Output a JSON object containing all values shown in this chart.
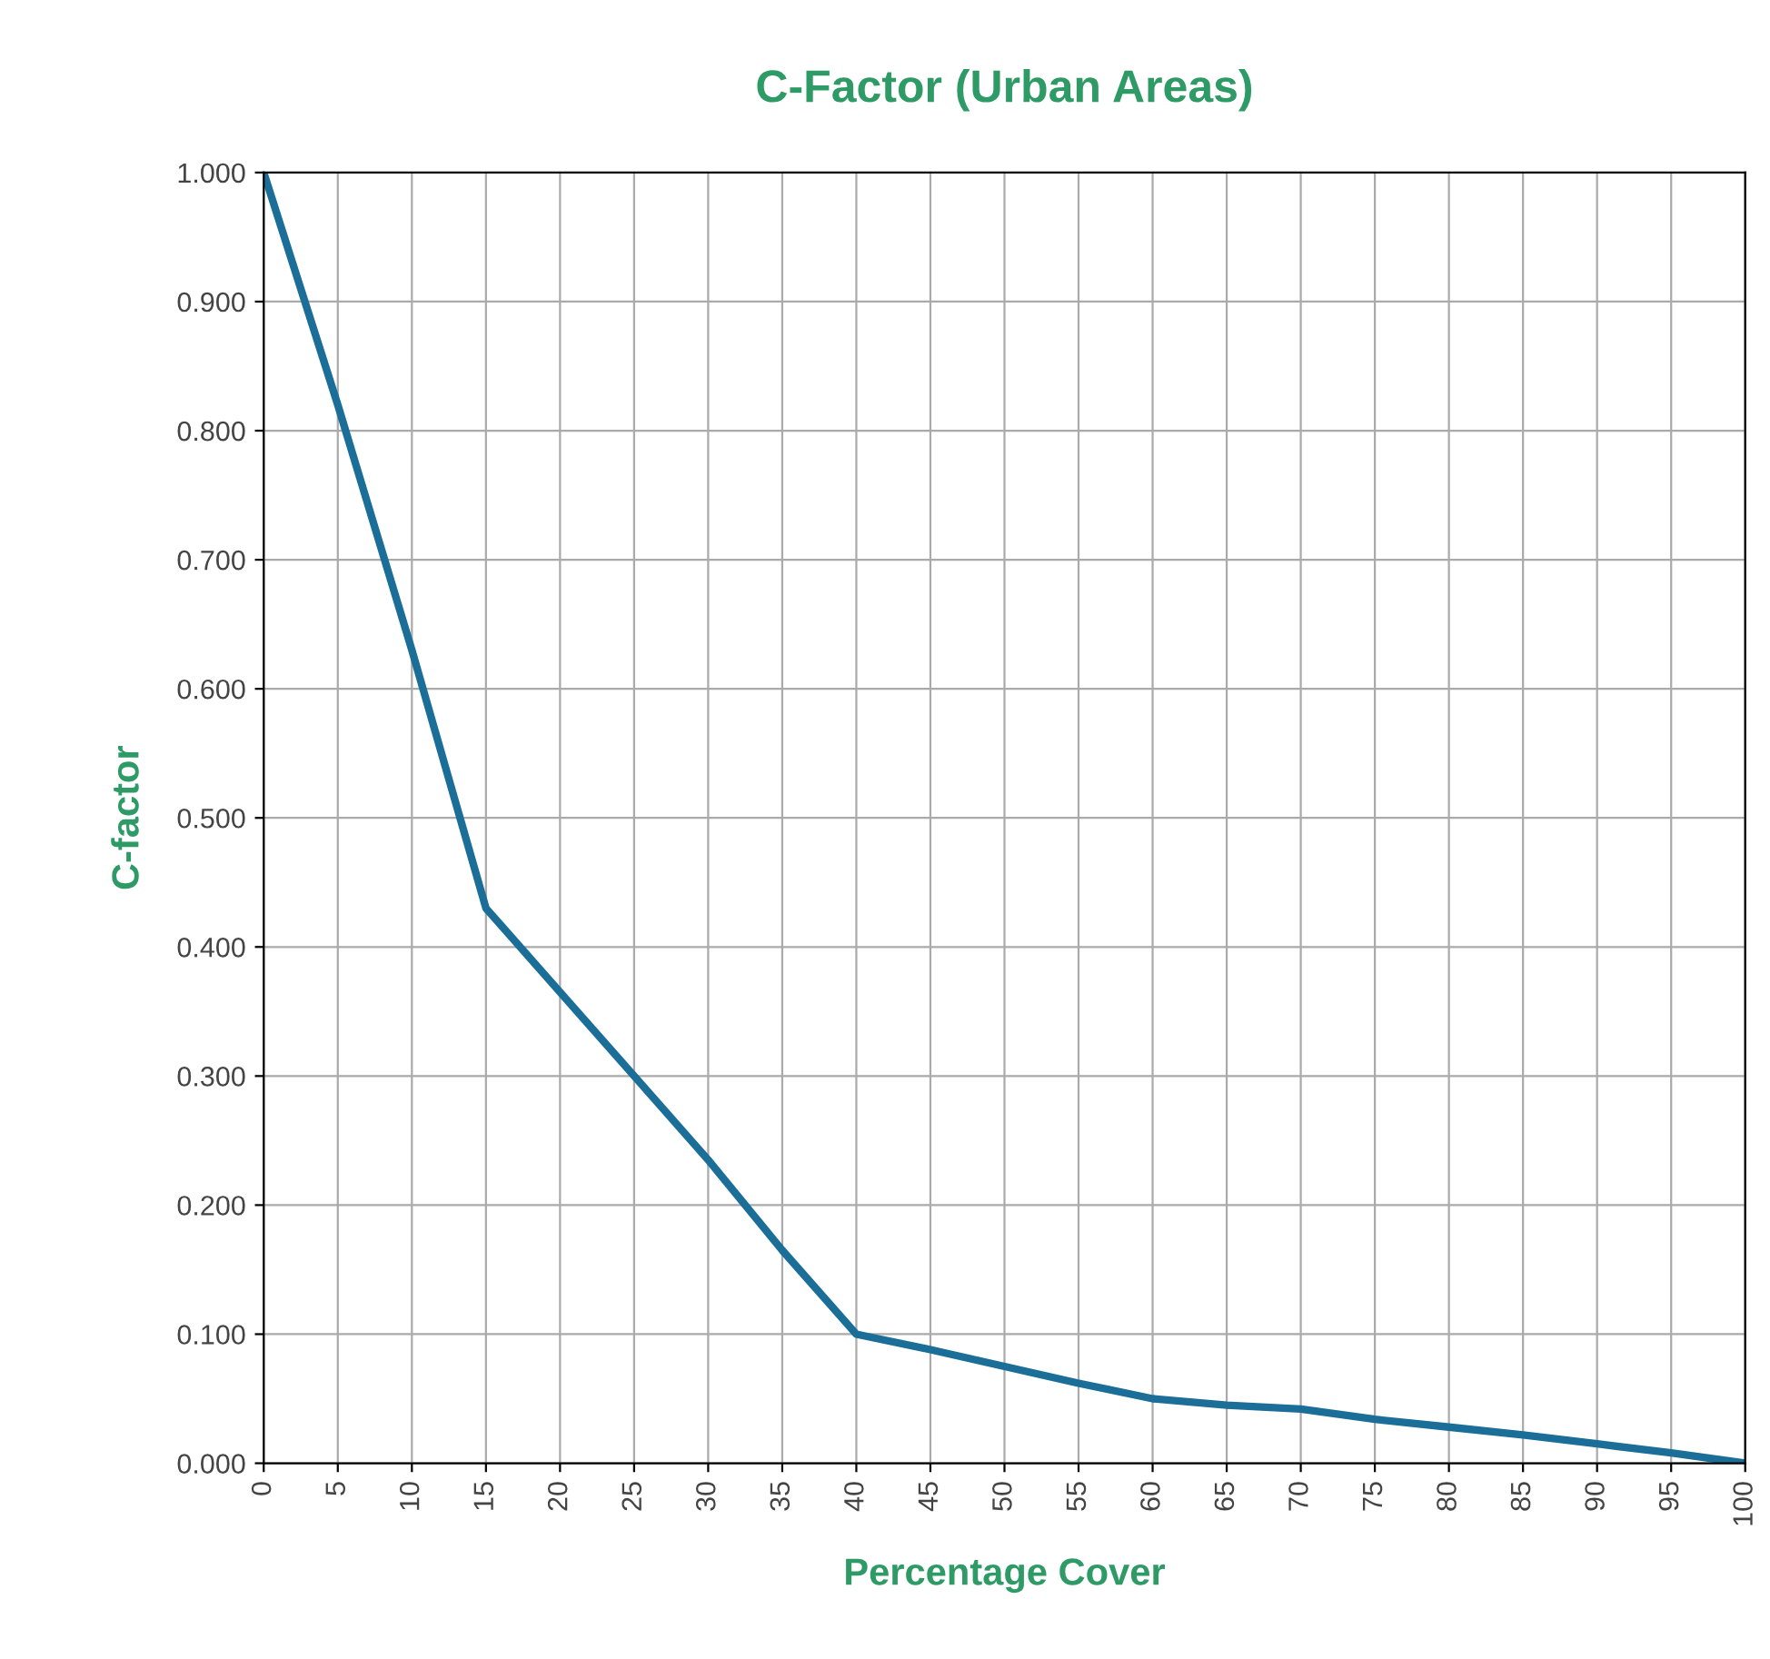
{
  "chart_data": {
    "type": "line",
    "title": "C-Factor (Urban Areas)",
    "xlabel": "Percentage Cover",
    "ylabel": "C-factor",
    "x": [
      0,
      5,
      10,
      12.5,
      15,
      20,
      25,
      30,
      35,
      40,
      45,
      50,
      55,
      60,
      65,
      70,
      75,
      80,
      85,
      90,
      95,
      100
    ],
    "series": [
      {
        "color": "#1a6e97",
        "values": [
          1.0,
          0.82,
          0.63,
          0.53,
          0.43,
          0.365,
          0.3,
          0.235,
          0.165,
          0.1,
          0.088,
          0.075,
          0.062,
          0.05,
          0.045,
          0.042,
          0.034,
          0.028,
          0.022,
          0.015,
          0.008,
          0.0
        ]
      }
    ],
    "xlim": [
      0,
      100
    ],
    "ylim": [
      0,
      1.0
    ],
    "xticks": [
      0,
      5,
      10,
      15,
      20,
      25,
      30,
      35,
      40,
      45,
      50,
      55,
      60,
      65,
      70,
      75,
      80,
      85,
      90,
      95,
      100
    ],
    "yticks": [
      {
        "value": 0,
        "label": "0.000"
      },
      {
        "value": 0.1,
        "label": "0.100"
      },
      {
        "value": 0.2,
        "label": "0.200"
      },
      {
        "value": 0.3,
        "label": "0.300"
      },
      {
        "value": 0.4,
        "label": "0.400"
      },
      {
        "value": 0.5,
        "label": "0.500"
      },
      {
        "value": 0.6,
        "label": "0.600"
      },
      {
        "value": 0.7,
        "label": "0.700"
      },
      {
        "value": 0.8,
        "label": "0.800"
      },
      {
        "value": 0.9,
        "label": "0.900"
      },
      {
        "value": 1.0,
        "label": "1.000"
      }
    ],
    "grid": true,
    "marker": "none",
    "line_style": "solid",
    "legend": false
  }
}
